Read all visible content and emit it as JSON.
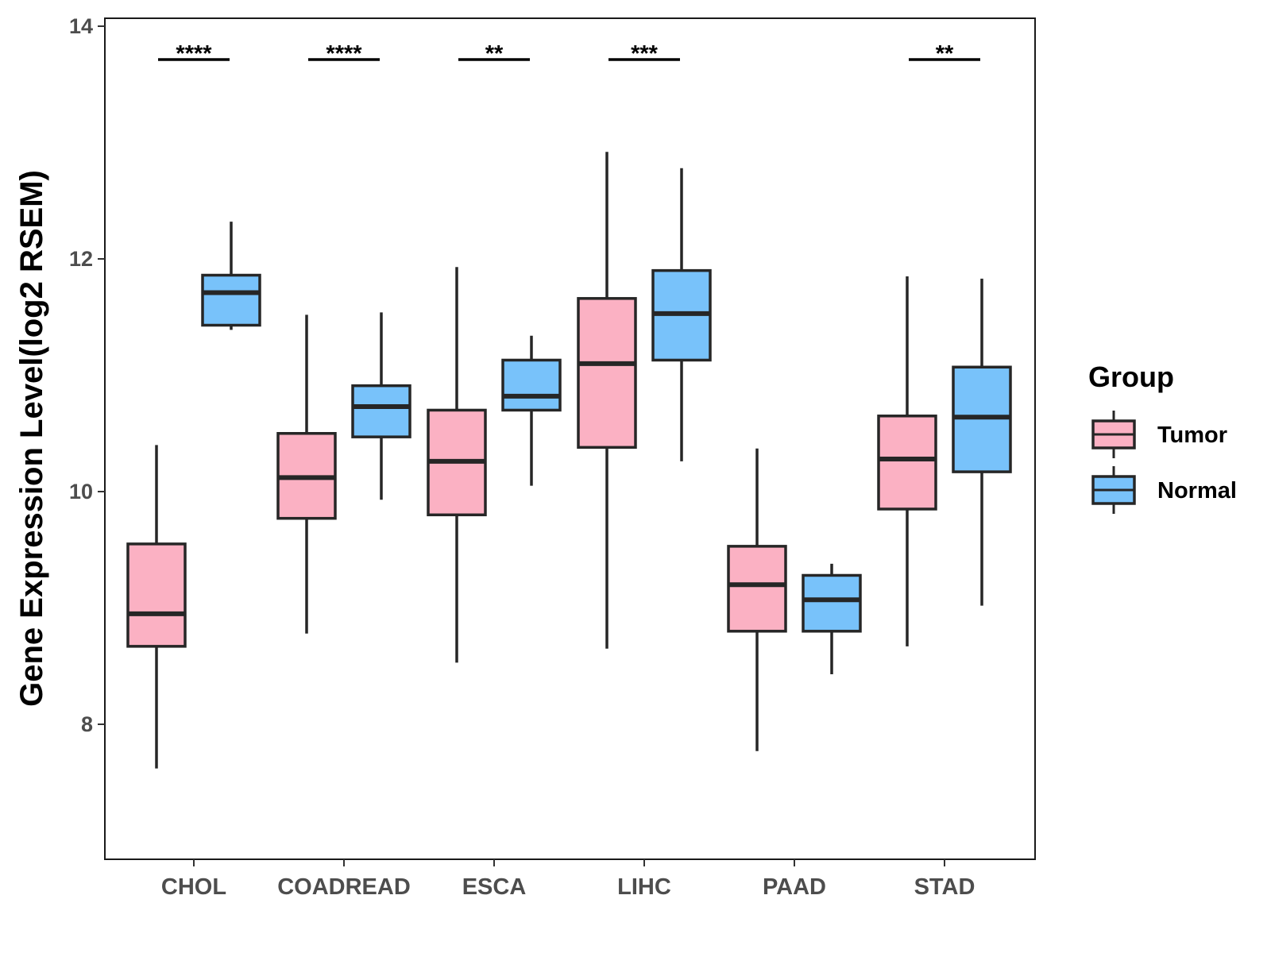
{
  "chart_data": {
    "type": "boxplot",
    "ylabel": "Gene Expression Level(log2 RSEM)",
    "xlabel": "",
    "yticks": [
      8,
      10,
      12,
      14
    ],
    "categories": [
      "CHOL",
      "COADREAD",
      "ESCA",
      "LIHC",
      "PAAD",
      "STAD"
    ],
    "legend": {
      "title": "Group",
      "placement": "right"
    },
    "grid": false,
    "series": [
      {
        "name": "Tumor",
        "color": "#fbb1c3",
        "boxes": [
          {
            "min": 7.62,
            "q1": 8.67,
            "median": 8.95,
            "q3": 9.55,
            "max": 10.4
          },
          {
            "min": 8.78,
            "q1": 9.77,
            "median": 10.12,
            "q3": 10.5,
            "max": 11.52
          },
          {
            "min": 8.53,
            "q1": 9.8,
            "median": 10.26,
            "q3": 10.7,
            "max": 11.93
          },
          {
            "min": 8.65,
            "q1": 10.38,
            "median": 11.1,
            "q3": 11.66,
            "max": 12.92
          },
          {
            "min": 7.77,
            "q1": 8.8,
            "median": 9.2,
            "q3": 9.53,
            "max": 10.37
          },
          {
            "min": 8.67,
            "q1": 9.85,
            "median": 10.28,
            "q3": 10.65,
            "max": 11.85
          }
        ]
      },
      {
        "name": "Normal",
        "color": "#78c2fa",
        "boxes": [
          {
            "min": 11.39,
            "q1": 11.43,
            "median": 11.71,
            "q3": 11.86,
            "max": 12.32
          },
          {
            "min": 9.93,
            "q1": 10.47,
            "median": 10.73,
            "q3": 10.91,
            "max": 11.54
          },
          {
            "min": 10.05,
            "q1": 10.7,
            "median": 10.82,
            "q3": 11.13,
            "max": 11.34
          },
          {
            "min": 10.26,
            "q1": 11.13,
            "median": 11.53,
            "q3": 11.9,
            "max": 12.78
          },
          {
            "min": 8.43,
            "q1": 8.8,
            "median": 9.07,
            "q3": 9.28,
            "max": 9.38
          },
          {
            "min": 9.02,
            "q1": 10.17,
            "median": 10.64,
            "q3": 11.07,
            "max": 11.83
          }
        ]
      }
    ],
    "significance": [
      "****",
      "****",
      "**",
      "***",
      "",
      "**"
    ]
  }
}
